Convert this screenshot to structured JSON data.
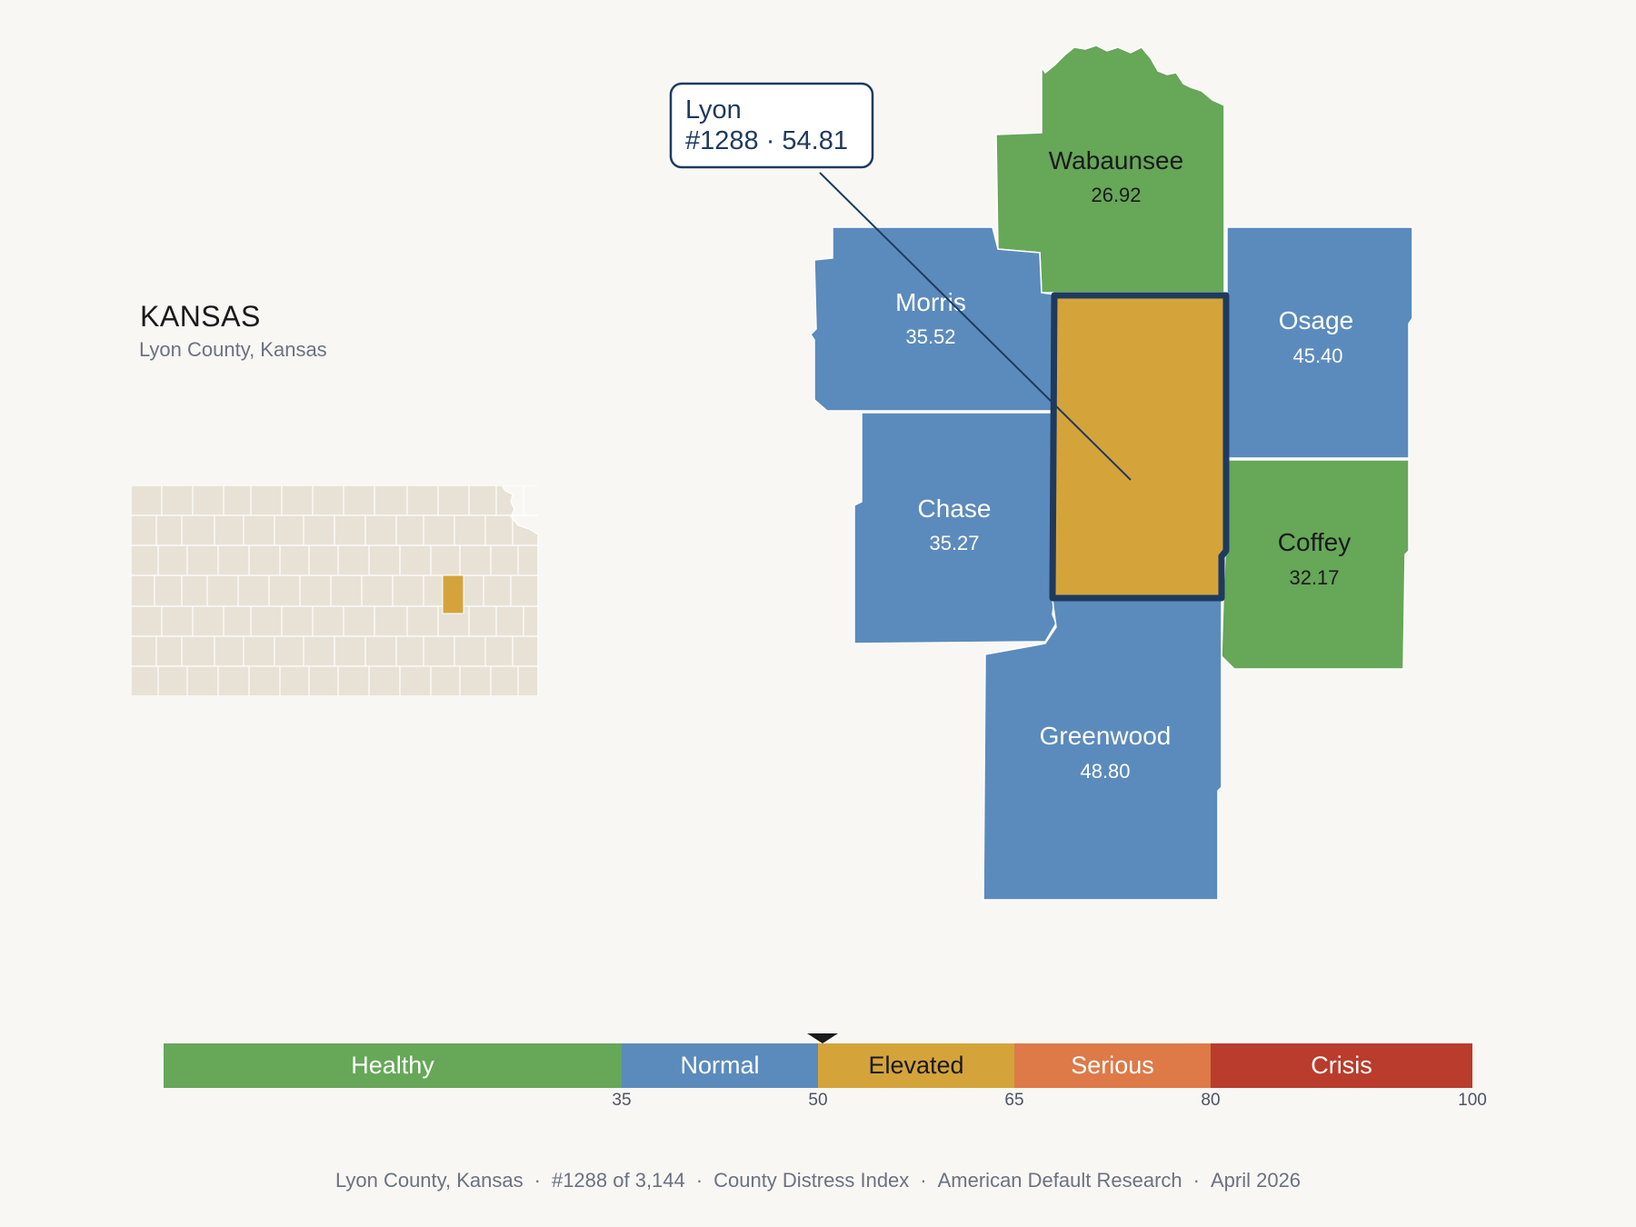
{
  "state": {
    "title": "KANSAS",
    "subtitle": "Lyon County, Kansas"
  },
  "callout": {
    "name": "Lyon",
    "detail": "#1288 · 54.81"
  },
  "counties": [
    {
      "name": "Lyon",
      "value": 54.81,
      "category": "Elevated",
      "highlighted": true
    },
    {
      "name": "Wabaunsee",
      "value_label": "26.92",
      "value": 26.92,
      "category": "Healthy"
    },
    {
      "name": "Morris",
      "value_label": "35.52",
      "value": 35.52,
      "category": "Normal"
    },
    {
      "name": "Osage",
      "value_label": "45.40",
      "value": 45.4,
      "category": "Normal"
    },
    {
      "name": "Chase",
      "value_label": "35.27",
      "value": 35.27,
      "category": "Normal"
    },
    {
      "name": "Coffey",
      "value_label": "32.17",
      "value": 32.17,
      "category": "Healthy"
    },
    {
      "name": "Greenwood",
      "value_label": "48.80",
      "value": 48.8,
      "category": "Normal"
    }
  ],
  "scale": {
    "min": 0,
    "max": 100,
    "marker_value": 54.81,
    "segments": [
      {
        "label": "Healthy",
        "from": 0,
        "to": 35,
        "color": "#66a758"
      },
      {
        "label": "Normal",
        "from": 35,
        "to": 50,
        "color": "#5b8bbc"
      },
      {
        "label": "Elevated",
        "from": 50,
        "to": 65,
        "color": "#d4a43b"
      },
      {
        "label": "Serious",
        "from": 65,
        "to": 80,
        "color": "#dd7a48"
      },
      {
        "label": "Crisis",
        "from": 80,
        "to": 100,
        "color": "#b93c2c"
      }
    ],
    "ticks": [
      "35",
      "50",
      "65",
      "80",
      "100"
    ]
  },
  "colors": {
    "Healthy": "#66a758",
    "Normal": "#5b8bbc",
    "Elevated": "#d4a43b",
    "highlight_stroke": "#1f3a5f",
    "locator_fill": "#e8e2d6"
  },
  "footer": {
    "items": [
      "Lyon County, Kansas",
      "#1288 of 3,144",
      "County Distress Index",
      "American Default Research",
      "April 2026"
    ],
    "separator": "·"
  }
}
